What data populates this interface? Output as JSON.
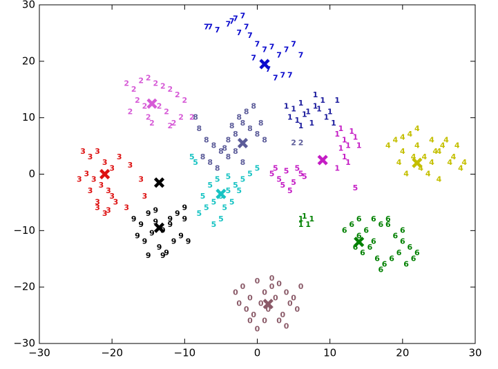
{
  "chart_data": {
    "type": "scatter",
    "xlim": [
      -30,
      30
    ],
    "ylim": [
      -30,
      30
    ],
    "xticks": [
      {
        "value": -30,
        "label": "−30"
      },
      {
        "value": -20,
        "label": "−20"
      },
      {
        "value": -10,
        "label": "−10"
      },
      0,
      10,
      20,
      30
    ],
    "yticks": [
      {
        "value": -30,
        "label": "−30"
      },
      {
        "value": -20,
        "label": "−20"
      },
      {
        "value": -10,
        "label": "−10"
      },
      0,
      10,
      20,
      30
    ],
    "series": [
      {
        "name": "7",
        "color": "#0a0acd",
        "x": [
          -7,
          -5.5,
          -4,
          -3,
          -2,
          -1.5,
          -2.5,
          -1,
          0,
          1,
          2,
          3,
          4,
          5,
          6,
          -0.5,
          1.5,
          2.5,
          3.5,
          4.5,
          -6.5,
          -3.5
        ],
        "y": [
          26,
          25.5,
          26.5,
          27.5,
          28,
          26,
          25,
          24.5,
          23,
          22,
          22.5,
          21,
          22,
          23,
          21,
          20.5,
          18.5,
          17,
          17.5,
          17.5,
          26,
          27
        ]
      },
      {
        "name": "2",
        "color": "#d65ad6",
        "x": [
          -18,
          -17,
          -16,
          -15,
          -14,
          -13,
          -12,
          -11,
          -10,
          -16.5,
          -15.5,
          -13.5,
          -12.5,
          -17.5,
          -15,
          -14.5,
          -11.5,
          -10.5,
          -12,
          -9
        ],
        "y": [
          16,
          15,
          16.5,
          17,
          16,
          15.5,
          15,
          14,
          13,
          13,
          12,
          12,
          11,
          11,
          10,
          9,
          9,
          10,
          8.5,
          10
        ]
      },
      {
        "name": "3",
        "color": "#dd1111",
        "x": [
          -24,
          -23,
          -22,
          -21,
          -20,
          -19,
          -23.5,
          -22.5,
          -21.5,
          -20.5,
          -24.5,
          -19.5,
          -22,
          -21,
          -20,
          -18,
          -16,
          -15.5,
          -17.5,
          -20.5,
          -22,
          -23
        ],
        "y": [
          4,
          3,
          4,
          2,
          1,
          3,
          0,
          -1,
          -2,
          -3,
          -1,
          -5,
          -6,
          -7,
          -4,
          -6,
          -1,
          -4,
          1.5,
          -6.5,
          -5,
          -3
        ]
      },
      {
        "name": "9",
        "color": "#000000",
        "x": [
          -17,
          -16,
          -15,
          -14,
          -13,
          -12,
          -11,
          -10,
          -16.5,
          -15.5,
          -14.5,
          -13.5,
          -12.5,
          -11.5,
          -10.5,
          -15,
          -13,
          -14,
          -12,
          -9.5,
          -10
        ],
        "y": [
          -8,
          -9,
          -7,
          -8.5,
          -10,
          -9,
          -7,
          -6,
          -11,
          -12,
          -10.5,
          -13,
          -14,
          -12,
          -11,
          -14.5,
          -14.5,
          -6.5,
          -8,
          -12,
          -8
        ]
      },
      {
        "name": "8",
        "color": "#5c5c99",
        "x": [
          -8,
          -7,
          -6,
          -5,
          -4,
          -3,
          -2,
          -1,
          0,
          1,
          -7.5,
          -6.5,
          -5.5,
          -4.5,
          -3.5,
          -2.5,
          -1.5,
          -0.5,
          -3,
          -2,
          -8.5,
          -4,
          0.5
        ],
        "y": [
          8,
          6,
          5,
          4,
          3,
          7,
          9,
          8,
          7,
          6,
          3,
          2,
          1,
          4.5,
          8.5,
          10,
          11,
          12,
          4,
          2,
          10,
          6,
          9
        ]
      },
      {
        "name": "5",
        "color": "#17c3c3",
        "x": [
          -8,
          -7,
          -6,
          -5,
          -4,
          -3,
          -2,
          -1,
          0,
          -7.5,
          -6.5,
          -5.5,
          -4.5,
          -3.5,
          -2.5,
          -6,
          -5,
          -4,
          -9,
          -8.5
        ],
        "y": [
          -7,
          -6,
          -5,
          -4,
          -3,
          -2,
          -1,
          0,
          1,
          -4,
          -2,
          -1,
          -6,
          -5,
          -3,
          -9,
          -8,
          -0.5,
          3,
          2
        ]
      },
      {
        "name": "1",
        "color": "#1a1a9c",
        "x": [
          4,
          5,
          6,
          7,
          8,
          9,
          10,
          11,
          4.5,
          5.5,
          6.5,
          7.5,
          8.5,
          9.5,
          6,
          8,
          10.5
        ],
        "y": [
          12,
          11.5,
          12.5,
          11,
          12,
          13,
          11,
          13,
          10,
          9.5,
          10.5,
          9,
          11.5,
          10,
          8.5,
          14,
          9
        ]
      },
      {
        "name": "1",
        "color": "#c41cc4",
        "x": [
          11,
          12,
          13,
          12.5,
          11.5,
          13.5,
          12,
          14,
          11,
          12.5,
          11.5
        ],
        "y": [
          7,
          6,
          7.5,
          5,
          4.5,
          6.5,
          3,
          5,
          1,
          2,
          8
        ]
      },
      {
        "name": "5",
        "color": "#c41cc4",
        "x": [
          2,
          3,
          4,
          5,
          6,
          3.5,
          4.5,
          5.5,
          2.5,
          6.5,
          13.5
        ],
        "y": [
          0,
          -1,
          0.5,
          -1.5,
          0,
          -2,
          -3,
          1,
          1,
          -0.5,
          -2.5
        ]
      },
      {
        "name": "4",
        "color": "#c4bf00",
        "x": [
          18,
          19,
          20,
          21,
          22,
          23,
          24,
          25,
          26,
          27,
          28,
          19.5,
          20.5,
          21.5,
          22.5,
          23.5,
          24.5,
          25.5,
          26.5,
          27.5,
          22,
          24,
          28.5,
          20,
          25
        ],
        "y": [
          5,
          6,
          4,
          7,
          5,
          3,
          2,
          4,
          6,
          3,
          1,
          2,
          0,
          3,
          1,
          0,
          4,
          5,
          2,
          5,
          8,
          6,
          2,
          6.5,
          -1
        ]
      },
      {
        "name": "6",
        "color": "#008000",
        "x": [
          12,
          13,
          14,
          15,
          16,
          17,
          18,
          19,
          20,
          21,
          22,
          13.5,
          14.5,
          15.5,
          16.5,
          17.5,
          18.5,
          19.5,
          20.5,
          21.5,
          14,
          16,
          18,
          20,
          17
        ],
        "y": [
          -10,
          -9,
          -11,
          -10,
          -12,
          -9,
          -8,
          -11,
          -12,
          -13,
          -14,
          -13,
          -14,
          -13,
          -15,
          -16,
          -15,
          -14,
          -16,
          -15,
          -8,
          -8,
          -9,
          -10,
          -17
        ]
      },
      {
        "name": "1",
        "color": "#008000",
        "x": [
          6,
          6.5,
          7,
          6,
          7.5
        ],
        "y": [
          -8,
          -7.5,
          -9,
          -9,
          -8
        ]
      },
      {
        "name": "0",
        "color": "#8a5a68",
        "x": [
          -3,
          -2,
          -1,
          0,
          1,
          2,
          3,
          4,
          5,
          6,
          -2.5,
          -1.5,
          -0.5,
          0.5,
          1.5,
          2.5,
          3.5,
          4.5,
          5.5,
          -1,
          1,
          3,
          0,
          4,
          2
        ],
        "y": [
          -21,
          -20,
          -22,
          -19,
          -21,
          -20,
          -19.5,
          -21,
          -22,
          -20,
          -23,
          -24,
          -25,
          -23,
          -24,
          -22,
          -25,
          -23,
          -24,
          -26,
          -26,
          -26,
          -27.5,
          -27,
          -18.5
        ]
      },
      {
        "name": "2",
        "color": "#5c5c99",
        "x": [
          5,
          6
        ],
        "y": [
          5.5,
          5.5
        ]
      }
    ],
    "centers": {
      "x": [
        1,
        -14.5,
        -21,
        -13.5,
        -2,
        -5,
        9,
        14,
        22,
        1.5,
        -13.5
      ],
      "y": [
        19.5,
        12.5,
        0,
        -9.5,
        5.5,
        -3.5,
        2.5,
        -12,
        2,
        -23,
        -1.5
      ],
      "colors": [
        "#0a0acd",
        "#d65ad6",
        "#dd1111",
        "#000000",
        "#5c5c99",
        "#17c3c3",
        "#c41cc4",
        "#008000",
        "#c4bf00",
        "#8a5a68",
        "#000000"
      ]
    }
  }
}
